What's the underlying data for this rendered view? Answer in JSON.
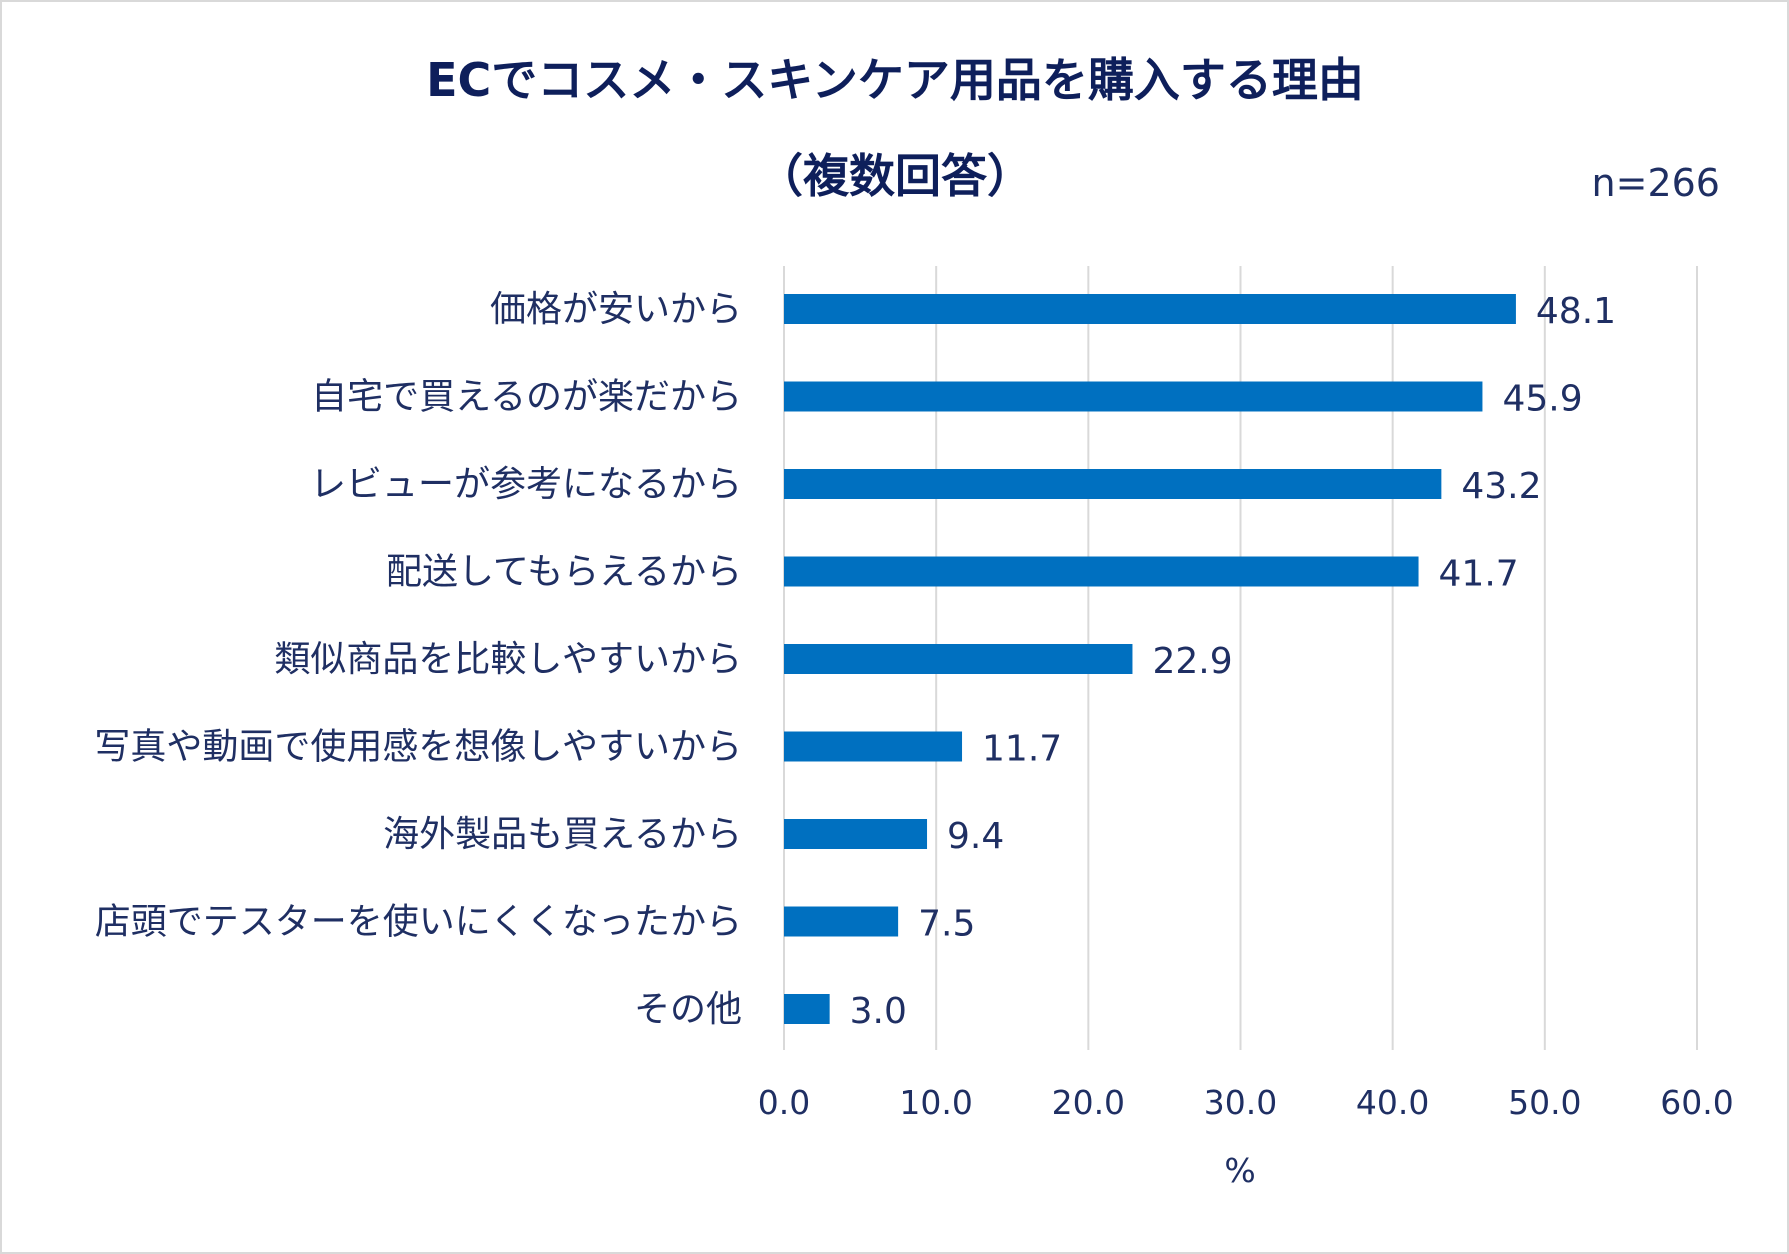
{
  "chart_data": {
    "type": "bar",
    "orientation": "horizontal",
    "title": "ECでコスメ・スキンケア用品を購入する理由",
    "subtitle": "（複数回答）",
    "note": "n=266",
    "categories": [
      "価格が安いから",
      "自宅で買えるのが楽だから",
      "レビューが参考になるから",
      "配送してもらえるから",
      "類似商品を比較しやすいから",
      "写真や動画で使用感を想像しやすいから",
      "海外製品も買えるから",
      "店頭でテスターを使いにくくなったから",
      "その他"
    ],
    "values": [
      48.1,
      45.9,
      43.2,
      41.7,
      22.9,
      11.7,
      9.4,
      7.5,
      3.0
    ],
    "value_labels": [
      "48.1",
      "45.9",
      "43.2",
      "41.7",
      "22.9",
      "11.7",
      "9.4",
      "7.5",
      "3.0"
    ],
    "xlabel": "%",
    "xlim": [
      0,
      60
    ],
    "ticks": [
      "0.0",
      "10.0",
      "20.0",
      "30.0",
      "40.0",
      "50.0",
      "60.0"
    ],
    "grid": "vertical",
    "bar_color": "#0070c0",
    "text_color": "#1f2f63",
    "grid_color": "#d9d9d9"
  }
}
